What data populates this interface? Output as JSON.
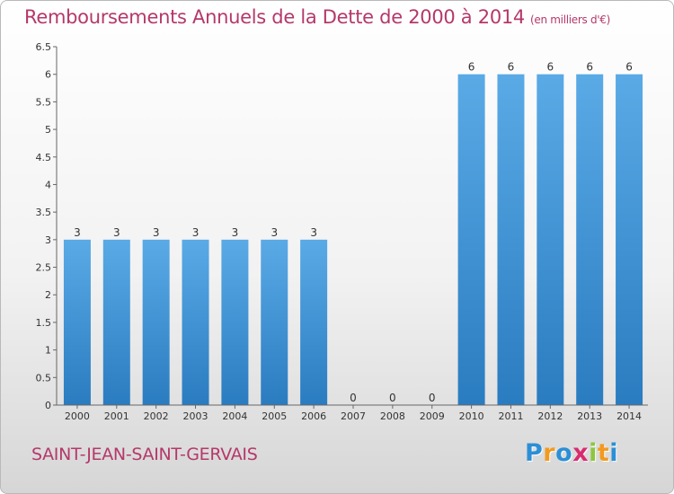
{
  "chart_data": {
    "type": "bar",
    "title": "Remboursements Annuels de la Dette de 2000 à 2014",
    "unit": "(en milliers d'€)",
    "categories": [
      "2000",
      "2001",
      "2002",
      "2003",
      "2004",
      "2005",
      "2006",
      "2007",
      "2008",
      "2009",
      "2010",
      "2011",
      "2012",
      "2013",
      "2014"
    ],
    "values": [
      3,
      3,
      3,
      3,
      3,
      3,
      3,
      0,
      0,
      0,
      6,
      6,
      6,
      6,
      6
    ],
    "value_labels": [
      "3",
      "3",
      "3",
      "3",
      "3",
      "3",
      "3",
      "0",
      "0",
      "0",
      "6",
      "6",
      "6",
      "6",
      "6"
    ],
    "ylim": [
      0,
      6.5
    ],
    "y_ticks": [
      0,
      0.5,
      1,
      1.5,
      2,
      2.5,
      3,
      3.5,
      4,
      4.5,
      5,
      5.5,
      6,
      6.5
    ],
    "y_tick_labels": [
      "0",
      "0.5",
      "1",
      "1.5",
      "2",
      "2.5",
      "3",
      "3.5",
      "4",
      "4.5",
      "5",
      "5.5",
      "6",
      "6.5"
    ],
    "bar_color_top": "#5aaae6",
    "bar_color_bottom": "#2a7cc0",
    "grid": false,
    "legend": "none"
  },
  "commune": "SAINT-JEAN-SAINT-GERVAIS",
  "logo": {
    "letters": [
      "P",
      "r",
      "o",
      "x",
      "i",
      "t",
      "i"
    ],
    "colors": [
      "#2b8fd6",
      "#f29a1f",
      "#2b8fd6",
      "#d92b6e",
      "#8dc63f",
      "#f29a1f",
      "#2b8fd6"
    ]
  }
}
